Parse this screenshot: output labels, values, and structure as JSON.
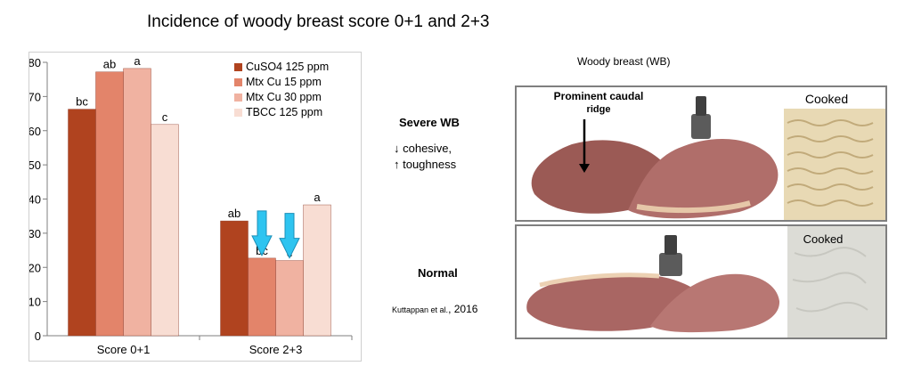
{
  "slide_title": "Incidence of woody breast score 0+1 and 2+3",
  "chart_data": {
    "type": "bar",
    "categories": [
      "Score 0+1",
      "Score 2+3"
    ],
    "series": [
      {
        "name": "CuSO4 125 ppm",
        "color": "#b0431f",
        "values": [
          66.3,
          33.6
        ],
        "letters": [
          "bc",
          "ab"
        ]
      },
      {
        "name": "Mtx Cu 15 ppm",
        "color": "#e3846a",
        "values": [
          77.2,
          22.7
        ],
        "letters": [
          "ab",
          "bc"
        ]
      },
      {
        "name": "Mtx Cu 30 ppm",
        "color": "#f0b2a1",
        "values": [
          78.2,
          22.0
        ],
        "letters": [
          "a",
          "c"
        ]
      },
      {
        "name": "TBCC 125 ppm",
        "color": "#f8ddd3",
        "values": [
          61.8,
          38.3
        ],
        "letters": [
          "c",
          "a"
        ]
      }
    ],
    "ylim": [
      0,
      80
    ],
    "yticks": [
      "0",
      "10",
      "20",
      "30",
      "40",
      "50",
      "60",
      "70",
      "80"
    ],
    "grid": false,
    "legend_position": "top-right",
    "highlight_arrows": [
      {
        "category": "Score 2+3",
        "series": "Mtx Cu 15 ppm"
      },
      {
        "category": "Score 2+3",
        "series": "Mtx Cu 30 ppm"
      }
    ],
    "arrow_color": "#2ec4f0"
  },
  "wb": {
    "title": "Woody breast (WB)",
    "severe_label": "Severe WB",
    "severe_note_1": "↓ cohesive,",
    "severe_note_2": "↑ toughness",
    "normal_label": "Normal",
    "citation_authors": "Kuttappan   et al.",
    "citation_year": ", 2016",
    "caption_line1": "Prominent caudal",
    "caption_line2": "ridge",
    "cooked_1": "Cooked",
    "cooked_2": "Cooked"
  }
}
